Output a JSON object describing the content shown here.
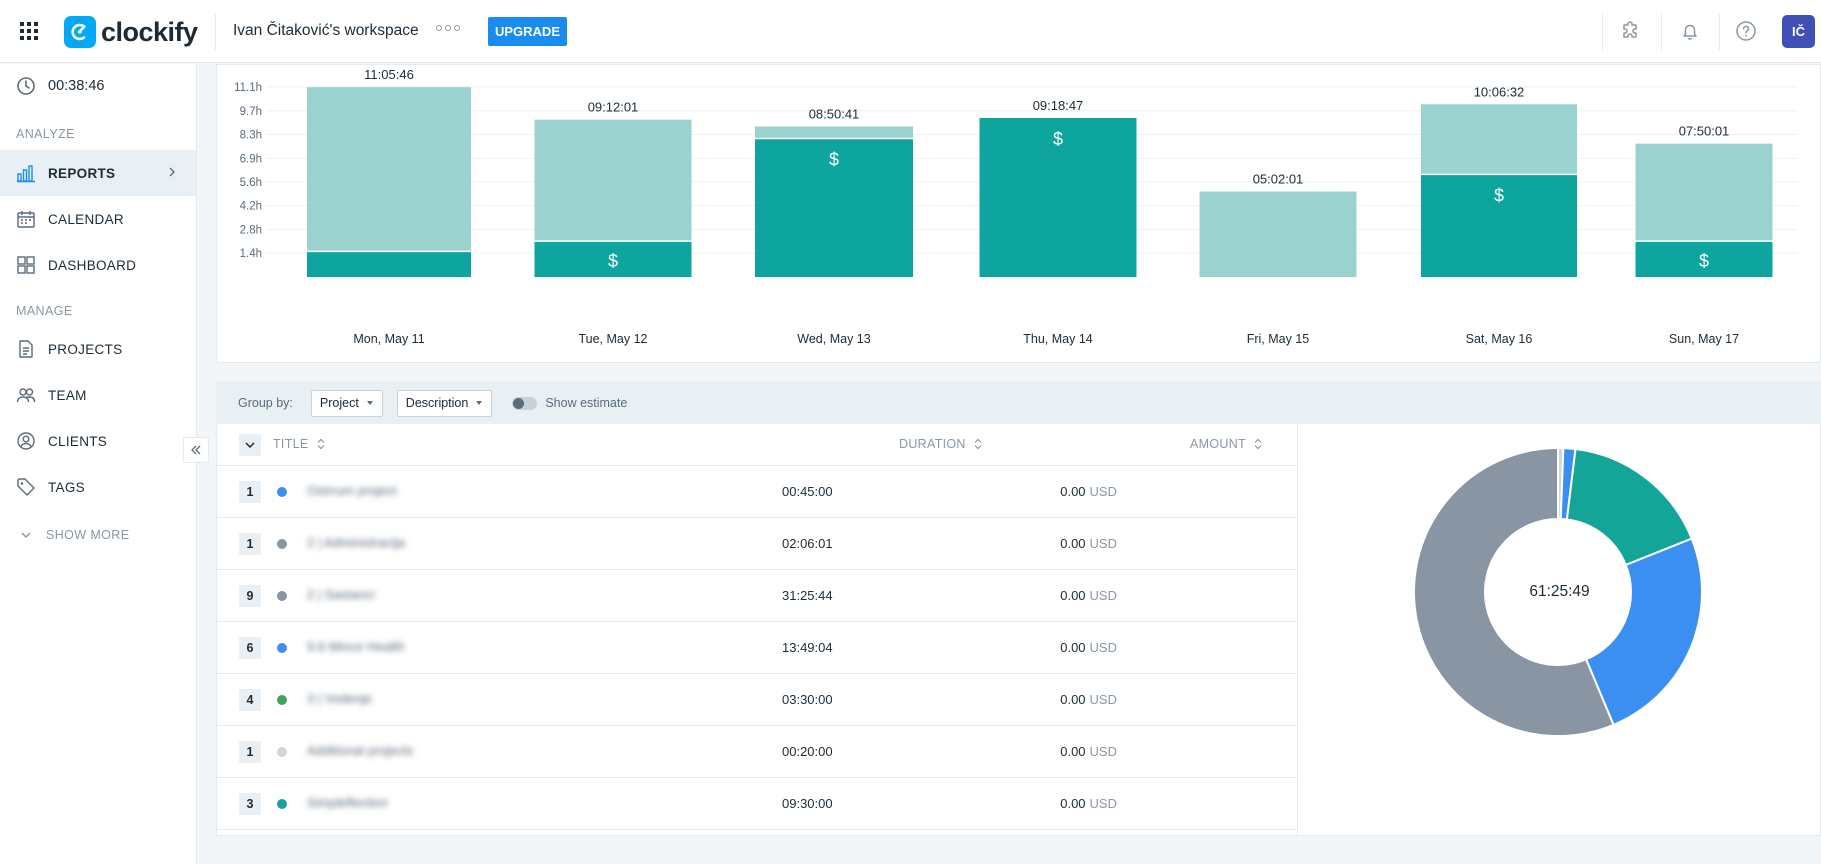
{
  "header": {
    "workspace": "Ivan Čitaković's workspace",
    "logo_text": "clockify",
    "upgrade_label": "UPGRADE",
    "avatar_initials": "IČ"
  },
  "sidebar": {
    "timer": "00:38:46",
    "sections": {
      "analyze": "ANALYZE",
      "manage": "MANAGE"
    },
    "items": [
      {
        "label": "REPORTS",
        "icon": "bar-chart-icon",
        "active": true
      },
      {
        "label": "CALENDAR",
        "icon": "calendar-icon"
      },
      {
        "label": "DASHBOARD",
        "icon": "dashboard-icon"
      },
      {
        "label": "PROJECTS",
        "icon": "document-icon"
      },
      {
        "label": "TEAM",
        "icon": "team-icon"
      },
      {
        "label": "CLIENTS",
        "icon": "client-icon"
      },
      {
        "label": "TAGS",
        "icon": "tag-icon"
      }
    ],
    "show_more": "SHOW MORE"
  },
  "chart_data": {
    "type": "bar",
    "stacked": true,
    "categories": [
      "Mon, May 11",
      "Tue, May 12",
      "Wed, May 13",
      "Thu, May 14",
      "Fri, May 15",
      "Sat, May 16",
      "Sun, May 17"
    ],
    "totals": [
      "11:05:46",
      "09:12:01",
      "08:50:41",
      "09:18:47",
      "05:02:01",
      "10:06:32",
      "07:50:01"
    ],
    "series": [
      {
        "billable": true,
        "values": [
          1.5,
          2.1,
          8.1,
          9.3,
          0.0,
          6.0,
          2.1
        ],
        "color": "#0ea59f"
      },
      {
        "billable": false,
        "values": [
          9.6,
          7.1,
          0.7,
          0.0,
          5.0,
          4.1,
          5.7
        ],
        "color": "#9bd2cf"
      }
    ],
    "dollar_marks": [
      false,
      true,
      true,
      true,
      false,
      true,
      true
    ],
    "y_ticks": [
      "1.4h",
      "2.8h",
      "4.2h",
      "5.6h",
      "6.9h",
      "8.3h",
      "9.7h",
      "11.1h"
    ],
    "y_tick_values": [
      1.39,
      2.78,
      4.17,
      5.56,
      6.94,
      8.33,
      9.72,
      11.11
    ],
    "ylim": [
      0,
      11.11
    ],
    "grid": true
  },
  "group_bar": {
    "label": "Group by:",
    "group1": "Project",
    "group2": "Description",
    "toggle_label": "Show estimate"
  },
  "table": {
    "headers": {
      "title": "TITLE",
      "duration": "DURATION",
      "amount": "AMOUNT"
    },
    "rows": [
      {
        "count": "1",
        "color": "#3b8ff0",
        "title": "Ostrrum project",
        "duration": "00:45:00",
        "amount": "0.00",
        "currency": "USD"
      },
      {
        "count": "1",
        "color": "#8a95a3",
        "title": "2 | Administracija",
        "duration": "02:06:01",
        "amount": "0.00",
        "currency": "USD"
      },
      {
        "count": "9",
        "color": "#8a95a3",
        "title": "2 | Sastanci",
        "duration": "31:25:44",
        "amount": "0.00",
        "currency": "USD"
      },
      {
        "count": "6",
        "color": "#3b8ff0",
        "title": "9.6 Mince Health",
        "duration": "13:49:04",
        "amount": "0.00",
        "currency": "USD"
      },
      {
        "count": "4",
        "color": "#3ea55a",
        "title": "3 | Vodenje",
        "duration": "03:30:00",
        "amount": "0.00",
        "currency": "USD"
      },
      {
        "count": "1",
        "color": "#cfd6dc",
        "title": "Additional projects",
        "duration": "00:20:00",
        "amount": "0.00",
        "currency": "USD"
      },
      {
        "count": "3",
        "color": "#12a598",
        "title": "Simpleflection",
        "duration": "09:30:00",
        "amount": "0.00",
        "currency": "USD"
      }
    ]
  },
  "donut": {
    "total": "61:25:49",
    "slices": [
      {
        "value": 20,
        "color": "#cfd6dc"
      },
      {
        "value": 45,
        "color": "#3b8ff0"
      },
      {
        "value": 570,
        "color": "#12a598"
      },
      {
        "value": 829,
        "color": "#3b8ff0"
      },
      {
        "value": 1886,
        "color": "#8a95a3"
      }
    ]
  }
}
